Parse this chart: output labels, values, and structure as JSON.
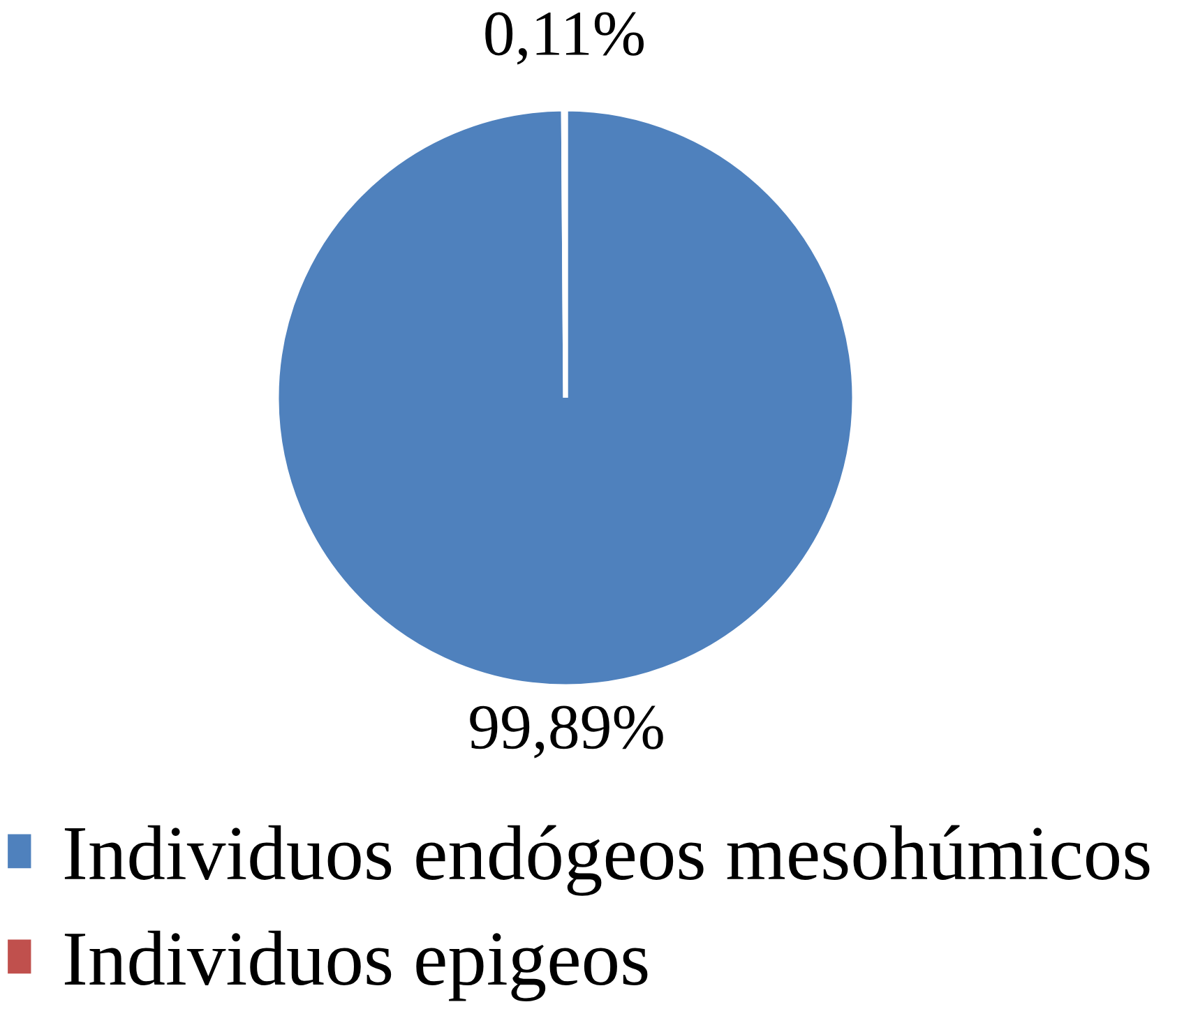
{
  "chart_data": {
    "type": "pie",
    "categories": [
      "Individuos endógeos mesohúmicos",
      "Individuos epigeos"
    ],
    "values": [
      99.89,
      0.11
    ],
    "colors": [
      "#4f81bd",
      "#c0504d"
    ],
    "value_labels": [
      "99,89%",
      "0,11%"
    ],
    "legend": "bottom left"
  }
}
